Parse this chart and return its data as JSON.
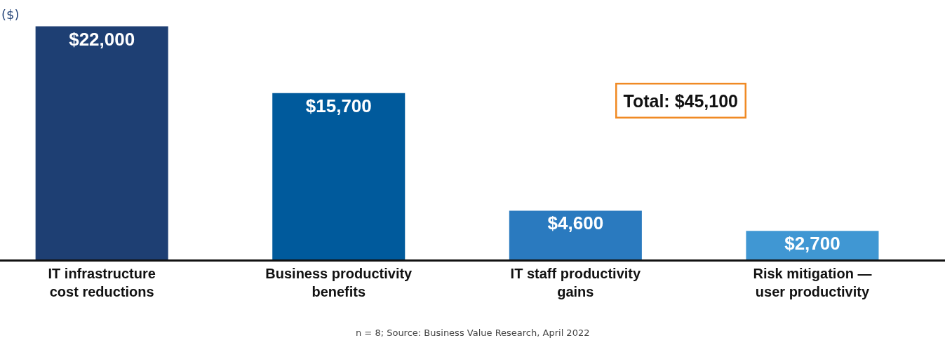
{
  "chart_data": {
    "type": "bar",
    "ylabel": "($)",
    "categories": [
      "IT infrastructure cost reductions",
      "Business productivity benefits",
      "IT staff productivity gains",
      "Risk mitigation — user productivity"
    ],
    "values": [
      22000,
      15700,
      4600,
      2700
    ],
    "colors": [
      "#1e3f73",
      "#005a9c",
      "#2a7abf",
      "#4097d3"
    ],
    "value_labels": [
      "$22,000",
      "$15,700",
      "$4,600",
      "$2,700"
    ],
    "annotations": [
      "Total: $45,100",
      "n = 8; Source: Business Value Research, April 2022"
    ],
    "grid": false
  }
}
